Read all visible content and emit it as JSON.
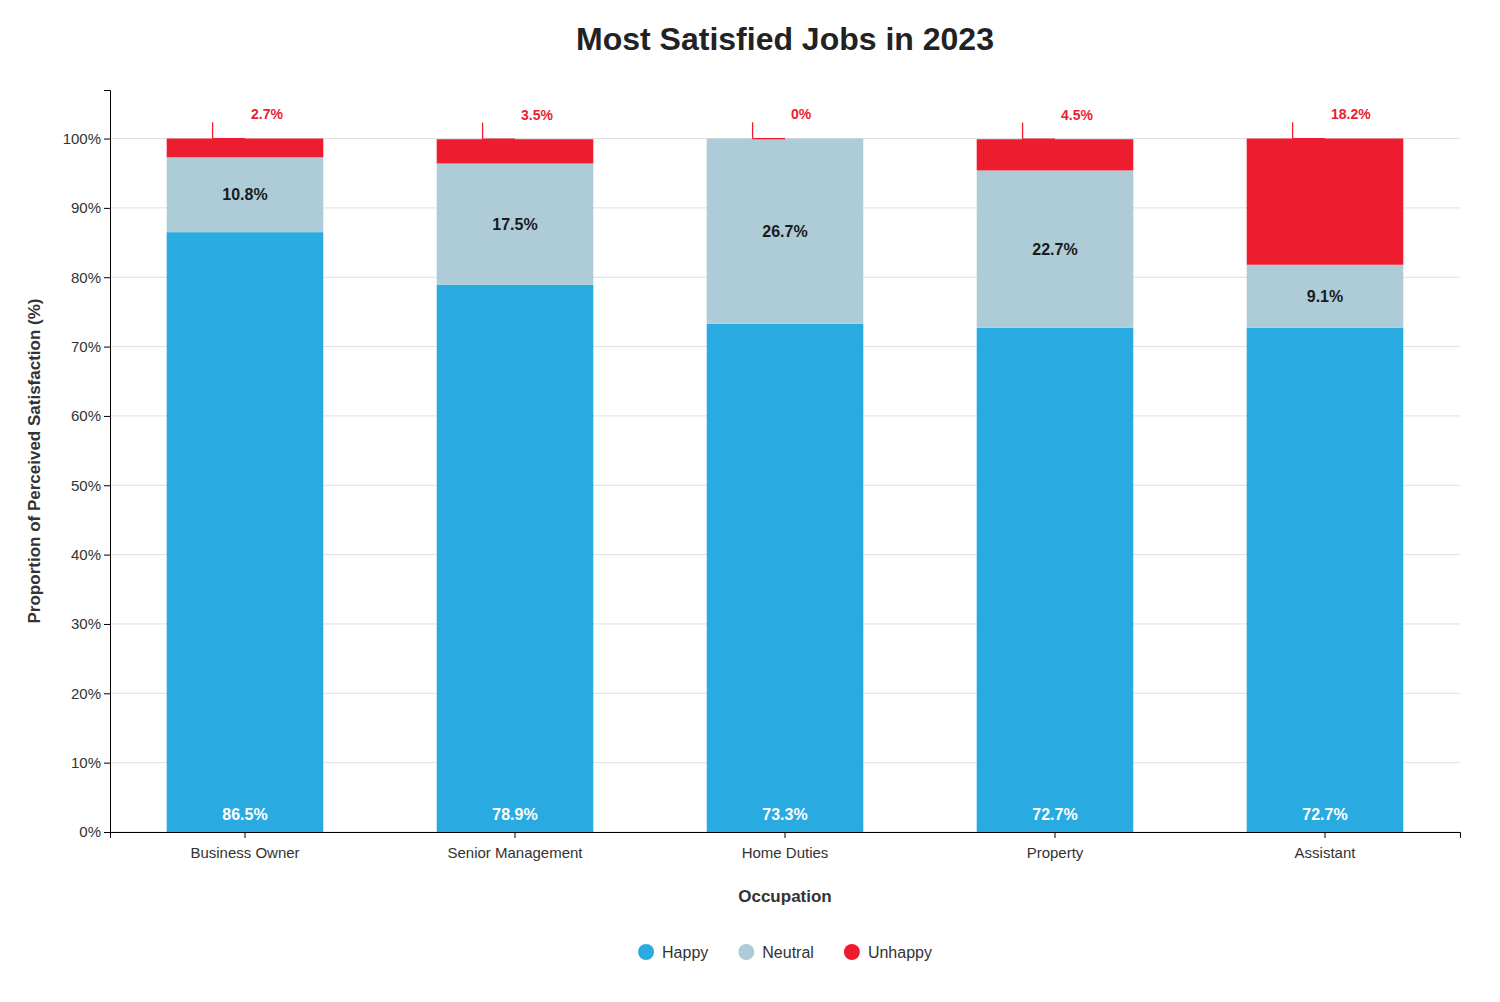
{
  "chart_data": {
    "type": "bar",
    "title": "Most Satisfied Jobs in 2023",
    "xlabel": "Occupation",
    "ylabel": "Proportion of Perceived Satisfaction (%)",
    "categories": [
      "Business Owner",
      "Senior Management",
      "Home Duties",
      "Property",
      "Assistant"
    ],
    "series": [
      {
        "name": "Happy",
        "color": "#29ABE2",
        "values": [
          86.5,
          78.9,
          73.3,
          72.7,
          72.7
        ],
        "value_labels": [
          "86.5%",
          "78.9%",
          "73.3%",
          "72.7%",
          "72.7%"
        ]
      },
      {
        "name": "Neutral",
        "color": "#AECCD8",
        "values": [
          10.8,
          17.5,
          26.7,
          22.7,
          9.1
        ],
        "value_labels": [
          "10.8%",
          "17.5%",
          "26.7%",
          "22.7%",
          "9.1%"
        ]
      },
      {
        "name": "Unhappy",
        "color": "#ED1C2E",
        "values": [
          2.7,
          3.5,
          0.0,
          4.5,
          18.2
        ],
        "value_labels": [
          "2.7%",
          "3.5%",
          "0%",
          "4.5%",
          "18.2%"
        ]
      }
    ],
    "stacked": true,
    "data_labels": true,
    "ylim": [
      0,
      107
    ],
    "yticks": [
      {
        "value": 0,
        "label": "0%"
      },
      {
        "value": 10,
        "label": "10%"
      },
      {
        "value": 20,
        "label": "20%"
      },
      {
        "value": 30,
        "label": "30%"
      },
      {
        "value": 40,
        "label": "40%"
      },
      {
        "value": 50,
        "label": "50%"
      },
      {
        "value": 60,
        "label": "60%"
      },
      {
        "value": 70,
        "label": "70%"
      },
      {
        "value": 80,
        "label": "80%"
      },
      {
        "value": 90,
        "label": "90%"
      },
      {
        "value": 100,
        "label": "100%"
      }
    ],
    "grid": true,
    "legend": "bottom"
  }
}
